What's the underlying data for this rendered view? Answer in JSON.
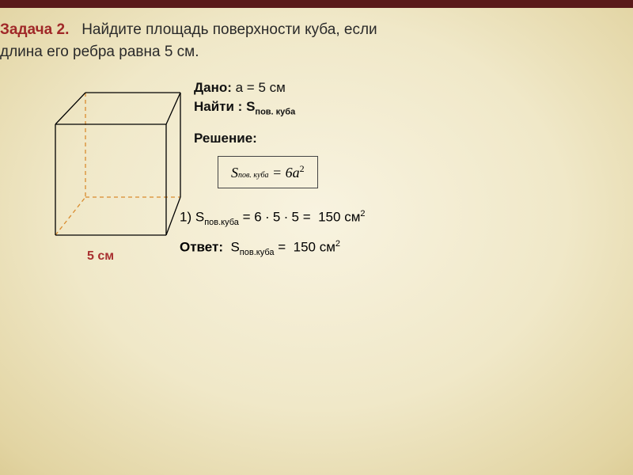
{
  "problem": {
    "label": "Задача 2.",
    "text_line1": "Найдите площадь поверхности куба, если",
    "text_line2": "длина его ребра равна 5 см."
  },
  "given": {
    "label": "Дано:",
    "content": "a = 5 см"
  },
  "find": {
    "label": "Найти :",
    "symbol_main": "S",
    "symbol_sub": "пов. куба"
  },
  "solution_header": "Решение:",
  "formula": {
    "lhs_main": "S",
    "lhs_sub": "пов. куба",
    "eq": " = 6",
    "var": "a",
    "exp": "2"
  },
  "step": {
    "index": "1)",
    "lhs_main": "S",
    "lhs_sub": "пов.куба",
    "expr": " = 6 ∙ 5 ∙ 5 = ",
    "result_value": "150",
    "result_unit": "см",
    "result_exp": "2"
  },
  "answer": {
    "label": "Ответ:",
    "lhs_main": "S",
    "lhs_sub": "пов.куба",
    "eq": " = ",
    "value": "150",
    "unit": "см",
    "exp": "2"
  },
  "cube": {
    "caption": "5 см",
    "front_stroke": "#000000",
    "back_stroke": "#d98b2e",
    "stroke_width": 1.3,
    "dash": "5,4",
    "width": 170,
    "height": 195
  },
  "colors": {
    "accent_red": "#a02828",
    "header_bar": "#5a1a1a",
    "text": "#111111"
  }
}
